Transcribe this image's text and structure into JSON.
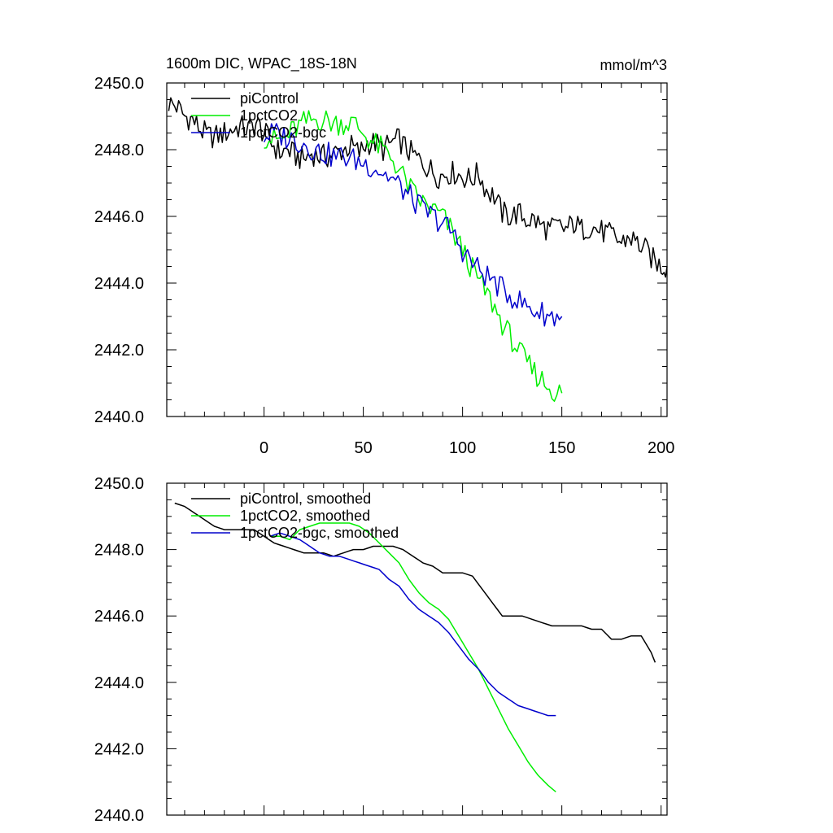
{
  "chart_data": [
    {
      "type": "line",
      "title": "1600m DIC, WPAC_18S-18N",
      "units_label": "mmol/m^3",
      "xlim": [
        -49,
        203
      ],
      "ylim": [
        2440,
        2450
      ],
      "xticks": [
        0,
        50,
        100,
        150,
        200
      ],
      "yticks": [
        2440,
        2442,
        2444,
        2446,
        2448,
        2450
      ],
      "ytick_labels": [
        "2440.0",
        "2442.0",
        "2444.0",
        "2446.0",
        "2448.0",
        "2450.0"
      ],
      "xtick_labels": [
        "0",
        "50",
        "100",
        "150",
        "200"
      ],
      "grid": false,
      "legend_position": "top-left",
      "series": [
        {
          "name": "piControl",
          "color": "#000000",
          "x": [
            -48,
            -44,
            -40,
            -36,
            -32,
            -28,
            -24,
            -20,
            -16,
            -12,
            -8,
            -4,
            0,
            4,
            8,
            12,
            16,
            20,
            24,
            28,
            32,
            36,
            40,
            44,
            48,
            52,
            56,
            60,
            64,
            68,
            72,
            76,
            80,
            84,
            88,
            92,
            96,
            100,
            104,
            108,
            112,
            116,
            120,
            124,
            128,
            132,
            136,
            140,
            144,
            148,
            152,
            156,
            160,
            164,
            168,
            172,
            176,
            180,
            184,
            188,
            192,
            196,
            200,
            203
          ],
          "y": [
            2449.4,
            2449.3,
            2449.0,
            2448.9,
            2448.6,
            2448.4,
            2448.4,
            2448.5,
            2448.6,
            2448.7,
            2448.6,
            2448.8,
            2448.5,
            2448.2,
            2447.9,
            2448.0,
            2447.8,
            2447.7,
            2447.9,
            2447.8,
            2447.8,
            2447.9,
            2448.0,
            2448.1,
            2447.9,
            2448.2,
            2448.2,
            2448.0,
            2448.2,
            2448.3,
            2448.0,
            2447.8,
            2447.6,
            2447.4,
            2447.2,
            2447.3,
            2447.3,
            2447.2,
            2447.1,
            2447.3,
            2446.8,
            2446.6,
            2446.1,
            2446.0,
            2446.1,
            2445.9,
            2445.9,
            2445.7,
            2445.6,
            2445.7,
            2445.6,
            2445.8,
            2445.6,
            2445.7,
            2445.6,
            2445.5,
            2445.4,
            2445.2,
            2445.4,
            2445.2,
            2445.0,
            2444.7,
            2444.5,
            2444.5
          ]
        },
        {
          "name": "1pctCO2",
          "color": "#00ee00",
          "x": [
            0,
            5,
            10,
            15,
            20,
            25,
            30,
            35,
            40,
            45,
            50,
            55,
            60,
            65,
            70,
            75,
            80,
            85,
            90,
            95,
            100,
            105,
            110,
            115,
            120,
            125,
            130,
            135,
            140,
            145,
            150
          ],
          "y": [
            2448.4,
            2448.3,
            2448.3,
            2448.6,
            2448.8,
            2448.9,
            2448.9,
            2448.8,
            2448.8,
            2448.8,
            2448.5,
            2448.2,
            2448.0,
            2447.7,
            2447.2,
            2446.7,
            2446.4,
            2446.2,
            2446.0,
            2445.5,
            2445.0,
            2444.4,
            2443.9,
            2443.4,
            2442.8,
            2442.3,
            2441.8,
            2441.4,
            2441.1,
            2440.8,
            2440.7
          ]
        },
        {
          "name": "1pctCO2-bgc",
          "color": "#0000cc",
          "x": [
            0,
            5,
            10,
            15,
            20,
            25,
            30,
            35,
            40,
            45,
            50,
            55,
            60,
            65,
            70,
            75,
            80,
            85,
            90,
            95,
            100,
            105,
            110,
            115,
            120,
            125,
            130,
            135,
            140,
            145,
            150
          ],
          "y": [
            2448.4,
            2448.5,
            2448.4,
            2448.3,
            2448.2,
            2448.0,
            2447.9,
            2447.8,
            2447.8,
            2447.7,
            2447.6,
            2447.5,
            2447.3,
            2447.1,
            2446.8,
            2446.5,
            2446.2,
            2446.0,
            2445.8,
            2445.5,
            2445.0,
            2444.6,
            2444.3,
            2444.1,
            2443.8,
            2443.6,
            2443.4,
            2443.2,
            2443.1,
            2443.0,
            2443.0
          ]
        }
      ]
    },
    {
      "type": "line",
      "title": "",
      "xlim": [
        -49,
        203
      ],
      "ylim": [
        2440,
        2450
      ],
      "xticks": [
        0,
        50,
        100,
        150,
        200
      ],
      "yticks": [
        2440,
        2442,
        2444,
        2446,
        2448,
        2450
      ],
      "ytick_labels": [
        "2440.0",
        "2442.0",
        "2444.0",
        "2446.0",
        "2448.0",
        "2450.0"
      ],
      "grid": false,
      "legend_position": "top-left",
      "series": [
        {
          "name": "piControl, smoothed",
          "color": "#000000",
          "x": [
            -45,
            -40,
            -35,
            -30,
            -25,
            -20,
            -15,
            -10,
            -5,
            0,
            5,
            10,
            15,
            20,
            25,
            30,
            35,
            40,
            45,
            50,
            55,
            60,
            65,
            70,
            75,
            80,
            85,
            90,
            95,
            100,
            105,
            110,
            115,
            120,
            125,
            130,
            135,
            140,
            145,
            150,
            155,
            160,
            165,
            170,
            175,
            180,
            185,
            190,
            195,
            197
          ],
          "y": [
            2449.4,
            2449.3,
            2449.1,
            2448.9,
            2448.7,
            2448.6,
            2448.6,
            2448.6,
            2448.6,
            2448.4,
            2448.2,
            2448.1,
            2448.0,
            2447.9,
            2447.9,
            2447.9,
            2447.8,
            2447.9,
            2448.0,
            2448.0,
            2448.1,
            2448.1,
            2448.1,
            2448.0,
            2447.8,
            2447.6,
            2447.5,
            2447.3,
            2447.3,
            2447.3,
            2447.2,
            2446.8,
            2446.4,
            2446.0,
            2446.0,
            2446.0,
            2445.9,
            2445.8,
            2445.7,
            2445.7,
            2445.7,
            2445.7,
            2445.6,
            2445.6,
            2445.3,
            2445.3,
            2445.4,
            2445.4,
            2444.9,
            2444.6
          ]
        },
        {
          "name": "1pctCO2, smoothed",
          "color": "#00ee00",
          "x": [
            3,
            8,
            13,
            18,
            23,
            28,
            33,
            38,
            43,
            48,
            53,
            58,
            63,
            68,
            73,
            78,
            83,
            88,
            93,
            98,
            103,
            108,
            113,
            118,
            123,
            128,
            133,
            138,
            143,
            147
          ],
          "y": [
            2448.4,
            2448.4,
            2448.3,
            2448.6,
            2448.7,
            2448.8,
            2448.8,
            2448.8,
            2448.8,
            2448.7,
            2448.5,
            2448.2,
            2447.9,
            2447.6,
            2447.1,
            2446.7,
            2446.4,
            2446.2,
            2445.9,
            2445.4,
            2444.9,
            2444.4,
            2443.8,
            2443.2,
            2442.6,
            2442.1,
            2441.6,
            2441.2,
            2440.9,
            2440.7
          ]
        },
        {
          "name": "1pctCO2-bgc, smoothed",
          "color": "#0000cc",
          "x": [
            3,
            8,
            13,
            18,
            23,
            28,
            33,
            38,
            43,
            48,
            53,
            58,
            63,
            68,
            73,
            78,
            83,
            88,
            93,
            98,
            103,
            108,
            113,
            118,
            123,
            128,
            133,
            138,
            143,
            147
          ],
          "y": [
            2448.4,
            2448.5,
            2448.4,
            2448.3,
            2448.1,
            2447.9,
            2447.8,
            2447.8,
            2447.7,
            2447.6,
            2447.5,
            2447.4,
            2447.1,
            2446.9,
            2446.5,
            2446.2,
            2446.0,
            2445.8,
            2445.5,
            2445.1,
            2444.7,
            2444.4,
            2444.0,
            2443.7,
            2443.5,
            2443.3,
            2443.2,
            2443.1,
            2443.0,
            2443.0
          ]
        }
      ]
    }
  ]
}
